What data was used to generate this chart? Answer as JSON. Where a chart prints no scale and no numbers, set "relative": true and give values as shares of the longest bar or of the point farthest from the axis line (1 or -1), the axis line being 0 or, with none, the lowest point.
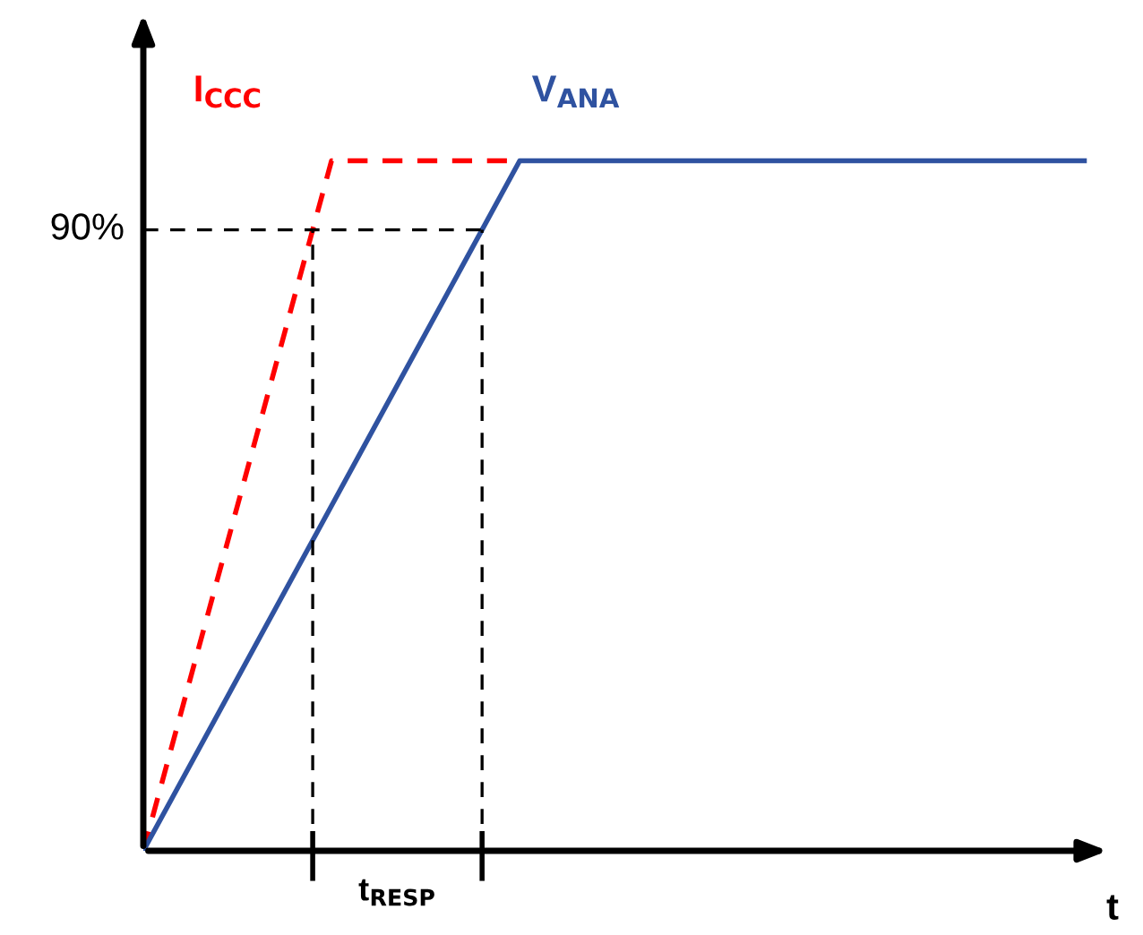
{
  "chart_data": {
    "type": "line",
    "relative": true,
    "xlabel": "t",
    "categories": [
      null,
      null,
      null,
      null,
      null,
      null
    ],
    "series": [
      {
        "name": "I$_{CCC}$",
        "color": "#ff0000",
        "line_style": "dashed",
        "values": [
          0,
          1,
          1,
          null,
          null,
          null
        ]
      },
      {
        "name": "V$_{ANA}$",
        "color": "#2f52a0",
        "line_style": "solid",
        "values": [
          0,
          0.5,
          1,
          1,
          1,
          1
        ]
      }
    ],
    "ref_lines": [
      {
        "axis": "y",
        "value": 0.9,
        "label": "90%"
      }
    ],
    "annotations": [
      "t$_{RESP}$"
    ]
  }
}
